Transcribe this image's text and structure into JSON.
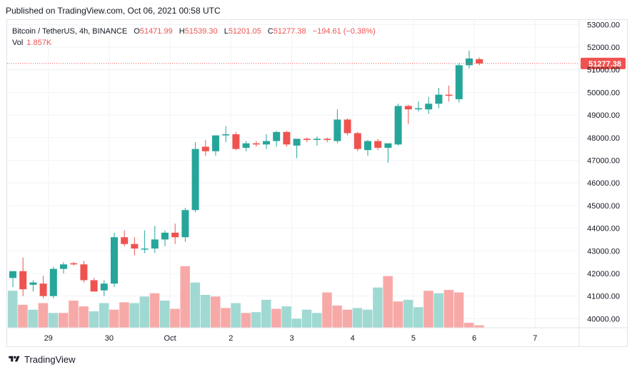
{
  "published_text": "Published on TradingView.com, Oct 06, 2021 00:58 UTC",
  "legend": {
    "symbol": "Bitcoin / TetherUS, 4h, BINANCE",
    "open_label": "O",
    "open": "51471.99",
    "high_label": "H",
    "high": "51539.30",
    "low_label": "L",
    "low": "51201.05",
    "close_label": "C",
    "close": "51277.38",
    "change": "−194.61 (−0.38%)",
    "vol_label": "Vol",
    "vol_value": "1.857K"
  },
  "footer": {
    "brand": "TradingView"
  },
  "colors": {
    "up": "#26a69a",
    "down": "#ef5350",
    "up_vol": "#9fd9d2",
    "down_vol": "#f7a9a7",
    "grid": "#f0f3fa",
    "axis_text": "#131722"
  },
  "chart_data": {
    "type": "candlestick",
    "price_axis_labels": [
      "53000.00",
      "52000.00",
      "51000.00",
      "50000.00",
      "49000.00",
      "48000.00",
      "47000.00",
      "46000.00",
      "45000.00",
      "44000.00",
      "43000.00",
      "42000.00",
      "41000.00",
      "40000.00"
    ],
    "price_range": [
      39600,
      53200
    ],
    "current_price_label": "51277.38",
    "x_ticks": [
      {
        "label": "29",
        "index": 3.5
      },
      {
        "label": "30",
        "index": 9.5
      },
      {
        "label": "Oct",
        "index": 15.5
      },
      {
        "label": "2",
        "index": 21.5
      },
      {
        "label": "3",
        "index": 27.5
      },
      {
        "label": "4",
        "index": 33.5
      },
      {
        "label": "5",
        "index": 39.5
      },
      {
        "label": "6",
        "index": 45.5
      },
      {
        "label": "7",
        "index": 51.5
      }
    ],
    "candles": [
      {
        "o": 41800,
        "h": 42100,
        "l": 41400,
        "c": 42100
      },
      {
        "o": 42100,
        "h": 42700,
        "l": 41000,
        "c": 41300
      },
      {
        "o": 41500,
        "h": 41700,
        "l": 41200,
        "c": 41600
      },
      {
        "o": 41550,
        "h": 41900,
        "l": 40900,
        "c": 41000
      },
      {
        "o": 41000,
        "h": 42300,
        "l": 40900,
        "c": 42200
      },
      {
        "o": 42200,
        "h": 42500,
        "l": 42000,
        "c": 42400
      },
      {
        "o": 42450,
        "h": 42500,
        "l": 42350,
        "c": 42400
      },
      {
        "o": 42400,
        "h": 42550,
        "l": 41600,
        "c": 41700
      },
      {
        "o": 41700,
        "h": 41800,
        "l": 41200,
        "c": 41200
      },
      {
        "o": 41250,
        "h": 41700,
        "l": 41000,
        "c": 41550
      },
      {
        "o": 41550,
        "h": 43800,
        "l": 41400,
        "c": 43600
      },
      {
        "o": 43600,
        "h": 43900,
        "l": 43200,
        "c": 43300
      },
      {
        "o": 43300,
        "h": 43600,
        "l": 42800,
        "c": 43100
      },
      {
        "o": 43100,
        "h": 43900,
        "l": 42900,
        "c": 43100
      },
      {
        "o": 43100,
        "h": 44100,
        "l": 42900,
        "c": 43500
      },
      {
        "o": 43500,
        "h": 43900,
        "l": 43200,
        "c": 43800
      },
      {
        "o": 43800,
        "h": 44200,
        "l": 43300,
        "c": 43600
      },
      {
        "o": 43600,
        "h": 44900,
        "l": 43400,
        "c": 44800
      },
      {
        "o": 44800,
        "h": 47800,
        "l": 44700,
        "c": 47500
      },
      {
        "o": 47600,
        "h": 47900,
        "l": 47200,
        "c": 47400
      },
      {
        "o": 47400,
        "h": 48100,
        "l": 47200,
        "c": 48100
      },
      {
        "o": 48100,
        "h": 48500,
        "l": 47800,
        "c": 48150
      },
      {
        "o": 48150,
        "h": 48250,
        "l": 47450,
        "c": 47500
      },
      {
        "o": 47550,
        "h": 47850,
        "l": 47400,
        "c": 47750
      },
      {
        "o": 47750,
        "h": 47850,
        "l": 47600,
        "c": 47700
      },
      {
        "o": 47700,
        "h": 48150,
        "l": 47500,
        "c": 47850
      },
      {
        "o": 47850,
        "h": 48300,
        "l": 47600,
        "c": 48250
      },
      {
        "o": 48250,
        "h": 48300,
        "l": 47600,
        "c": 47700
      },
      {
        "o": 47650,
        "h": 47900,
        "l": 47100,
        "c": 47950
      },
      {
        "o": 47950,
        "h": 48000,
        "l": 47800,
        "c": 47900
      },
      {
        "o": 47900,
        "h": 48050,
        "l": 47650,
        "c": 47950
      },
      {
        "o": 47950,
        "h": 48000,
        "l": 47800,
        "c": 47900
      },
      {
        "o": 47850,
        "h": 49250,
        "l": 47750,
        "c": 48800
      },
      {
        "o": 48800,
        "h": 48850,
        "l": 48100,
        "c": 48200
      },
      {
        "o": 48200,
        "h": 48250,
        "l": 47400,
        "c": 47500
      },
      {
        "o": 47450,
        "h": 47900,
        "l": 47200,
        "c": 47850
      },
      {
        "o": 47850,
        "h": 47950,
        "l": 47450,
        "c": 47550
      },
      {
        "o": 47550,
        "h": 47750,
        "l": 46900,
        "c": 47750
      },
      {
        "o": 47700,
        "h": 49500,
        "l": 47650,
        "c": 49400
      },
      {
        "o": 49400,
        "h": 49450,
        "l": 48600,
        "c": 49250
      },
      {
        "o": 49250,
        "h": 49600,
        "l": 49150,
        "c": 49300
      },
      {
        "o": 49250,
        "h": 49800,
        "l": 49050,
        "c": 49500
      },
      {
        "o": 49500,
        "h": 50200,
        "l": 49300,
        "c": 49900
      },
      {
        "o": 49900,
        "h": 50300,
        "l": 49600,
        "c": 49850
      },
      {
        "o": 49700,
        "h": 51300,
        "l": 49550,
        "c": 51200
      },
      {
        "o": 51200,
        "h": 51850,
        "l": 51050,
        "c": 51500
      },
      {
        "o": 51470,
        "h": 51540,
        "l": 51200,
        "c": 51280
      }
    ],
    "volume_relative": [
      0.45,
      0.28,
      0.22,
      0.3,
      0.18,
      0.18,
      0.33,
      0.26,
      0.2,
      0.3,
      0.22,
      0.31,
      0.3,
      0.38,
      0.42,
      0.33,
      0.23,
      0.75,
      0.55,
      0.4,
      0.38,
      0.24,
      0.3,
      0.18,
      0.19,
      0.34,
      0.23,
      0.26,
      0.11,
      0.22,
      0.18,
      0.43,
      0.27,
      0.22,
      0.24,
      0.22,
      0.49,
      0.63,
      0.32,
      0.34,
      0.25,
      0.45,
      0.42,
      0.46,
      0.43,
      0.06,
      0.03
    ],
    "volume_up": [
      true,
      false,
      true,
      false,
      true,
      false,
      false,
      false,
      true,
      true,
      false,
      false,
      true,
      true,
      false,
      true,
      false,
      false,
      true,
      true,
      false,
      false,
      true,
      false,
      true,
      true,
      false,
      true,
      true,
      true,
      true,
      false,
      false,
      false,
      true,
      true,
      true,
      false,
      false,
      true,
      true,
      false,
      true,
      false,
      false,
      false,
      false
    ],
    "grid": true
  }
}
